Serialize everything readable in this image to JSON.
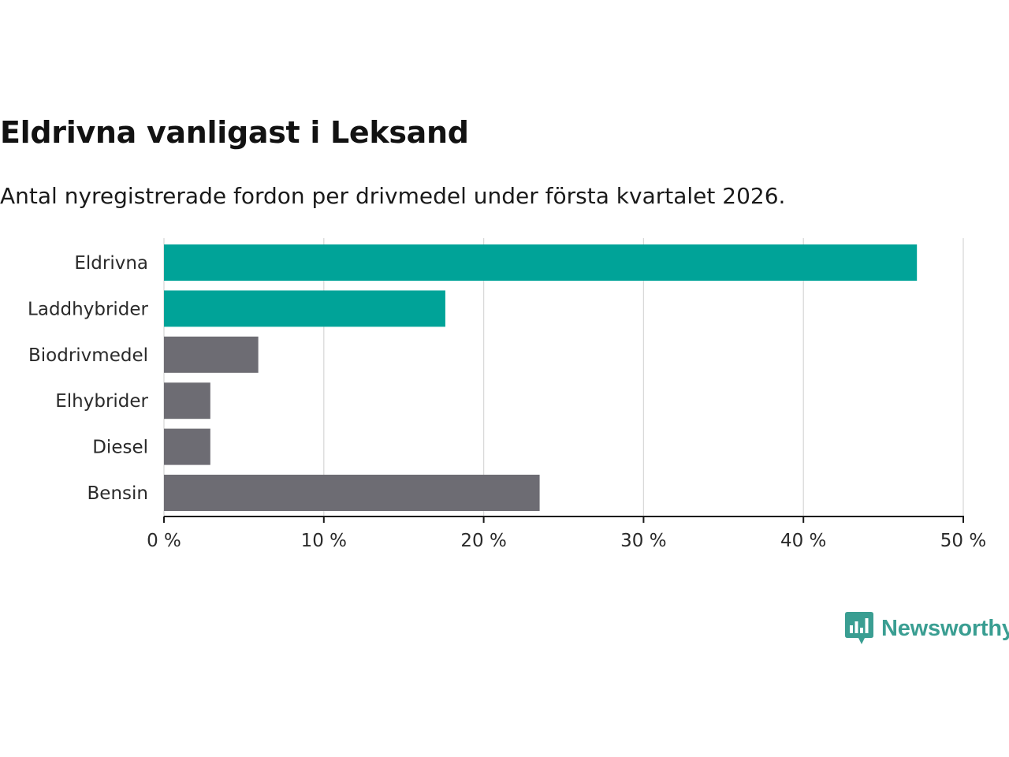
{
  "title": "Eldrivna vanligast i Leksand",
  "subtitle": "Antal nyregistrerade fordon per drivmedel under första kvartalet 2026.",
  "logo_text": "Newsworthy",
  "colors": {
    "highlight": "#00a398",
    "default": "#6d6c73",
    "grid": "#d9d9d9",
    "axis": "#1a1a1a",
    "brand": "#3a9e92"
  },
  "chart_data": {
    "type": "bar",
    "orientation": "horizontal",
    "categories": [
      "Eldrivna",
      "Laddhybrider",
      "Biodrivmedel",
      "Elhybrider",
      "Diesel",
      "Bensin"
    ],
    "values": [
      47.1,
      17.6,
      5.9,
      2.9,
      2.9,
      23.5
    ],
    "highlighted": [
      true,
      true,
      false,
      false,
      false,
      false
    ],
    "xlim": [
      0,
      50
    ],
    "xticks": [
      0,
      10,
      20,
      30,
      40,
      50
    ],
    "xtick_labels": [
      "0 %",
      "10 %",
      "20 %",
      "30 %",
      "40 %",
      "50 %"
    ],
    "xlabel": "",
    "ylabel": "",
    "grid": true,
    "legend": "none"
  }
}
